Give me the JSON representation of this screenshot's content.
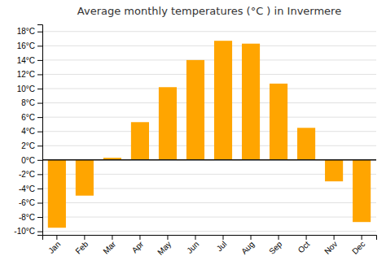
{
  "chart_data": {
    "type": "bar",
    "title": "Average monthly temperatures (°C ) in Invermere",
    "categories": [
      "Jan",
      "Feb",
      "Mar",
      "Apr",
      "May",
      "Jun",
      "Jul",
      "Aug",
      "Sep",
      "Oct",
      "Nov",
      "Dec"
    ],
    "values": [
      -9.5,
      -5.0,
      0.3,
      5.3,
      10.2,
      14.0,
      16.7,
      16.3,
      10.7,
      4.5,
      -3.0,
      -8.7
    ],
    "color": "#FFA500",
    "ylim": [
      -10.5,
      19
    ],
    "yticks": [
      {
        "value": -10,
        "label": "-10°C"
      },
      {
        "value": -8,
        "label": "-8°C"
      },
      {
        "value": -6,
        "label": "-6°C"
      },
      {
        "value": -4,
        "label": "-4°C"
      },
      {
        "value": -2,
        "label": "-2°C"
      },
      {
        "value": 0,
        "label": "0°C"
      },
      {
        "value": 2,
        "label": "2°C"
      },
      {
        "value": 4,
        "label": "4°C"
      },
      {
        "value": 6,
        "label": "6°C"
      },
      {
        "value": 8,
        "label": "8°C"
      },
      {
        "value": 10,
        "label": "10°C"
      },
      {
        "value": 12,
        "label": "12°C"
      },
      {
        "value": 14,
        "label": "14°C"
      },
      {
        "value": 16,
        "label": "16°C"
      },
      {
        "value": 18,
        "label": "18°C"
      }
    ],
    "grid": true
  }
}
